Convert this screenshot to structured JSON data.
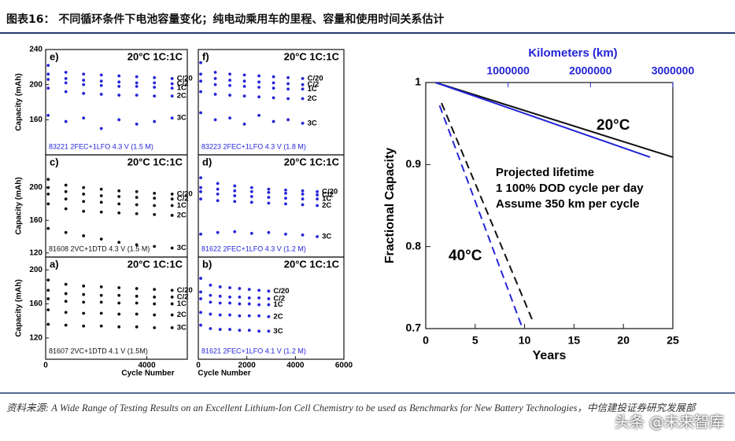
{
  "header": {
    "title": "图表16：  不同循环条件下电池容量变化；纯电动乘用车的里程、容量和使用时间关系估计"
  },
  "source": "资料来源: A Wide Range of Testing Results on an Excellent Lithium-Ion Cell Chemistry to be used as Benchmarks for New Battery Technologies，中信建投证券研究发展部",
  "watermark": "头条 @未来智库",
  "chart_data": [
    {
      "type": "scatter",
      "label": "e)",
      "title": "20°C 1C:1C",
      "note": "83221 2FEC+1LFO 4.3 V (1.5 M)",
      "y_label": "Capacity (mAh)",
      "color": "#2424d8",
      "x": [
        100,
        800,
        1500,
        2200,
        2900,
        3600,
        4300,
        5000
      ],
      "xlim": [
        0,
        5600
      ],
      "ylim": [
        120,
        240
      ],
      "yticks": [
        160,
        200,
        240
      ],
      "series": [
        {
          "name": "C/20",
          "values": [
            222,
            214,
            212,
            211,
            210,
            209,
            208,
            207
          ]
        },
        {
          "name": "C/2",
          "values": [
            212,
            207,
            205,
            204,
            203,
            202,
            202,
            201
          ]
        },
        {
          "name": "1C",
          "values": [
            206,
            202,
            200,
            199,
            198,
            198,
            197,
            196
          ]
        },
        {
          "name": "2C",
          "values": [
            196,
            192,
            190,
            189,
            188,
            188,
            187,
            187
          ]
        },
        {
          "name": "3C",
          "values": [
            165,
            158,
            162,
            150,
            160,
            155,
            158,
            162
          ]
        }
      ]
    },
    {
      "type": "scatter",
      "label": "f)",
      "title": "20°C 1C:1C",
      "note": "83223 2FEC+1LFO 4.3 V (1.8 M)",
      "color": "#2424d8",
      "x": [
        100,
        700,
        1300,
        1900,
        2500,
        3100,
        3700,
        4300
      ],
      "xlim": [
        0,
        6000
      ],
      "ylim": [
        120,
        240
      ],
      "series": [
        {
          "name": "C/20",
          "values": [
            225,
            214,
            212,
            211,
            210,
            209,
            208,
            207
          ]
        },
        {
          "name": "C/2",
          "values": [
            212,
            207,
            205,
            204,
            203,
            202,
            201,
            200
          ]
        },
        {
          "name": "1C",
          "values": [
            204,
            200,
            199,
            198,
            197,
            196,
            195,
            195
          ]
        },
        {
          "name": "2C",
          "values": [
            192,
            189,
            188,
            187,
            186,
            185,
            184,
            184
          ]
        },
        {
          "name": "3C",
          "values": [
            168,
            160,
            162,
            155,
            165,
            158,
            160,
            156
          ]
        }
      ]
    },
    {
      "type": "scatter",
      "label": "c)",
      "title": "20°C 1C:1C",
      "note": "81608 2VC+1DTD 4.3 V (1.5 M)",
      "y_label": "Capacity (mAh)",
      "color": "#111111",
      "x": [
        100,
        800,
        1500,
        2200,
        2900,
        3600,
        4300,
        5000
      ],
      "xlim": [
        0,
        5600
      ],
      "ylim": [
        115,
        240
      ],
      "yticks": [
        120,
        160,
        200
      ],
      "series": [
        {
          "name": "C/20",
          "values": [
            210,
            203,
            200,
            198,
            196,
            195,
            193,
            192
          ]
        },
        {
          "name": "C/2",
          "values": [
            200,
            195,
            192,
            190,
            189,
            188,
            187,
            186
          ]
        },
        {
          "name": "1C",
          "values": [
            192,
            186,
            183,
            182,
            180,
            179,
            178,
            178
          ]
        },
        {
          "name": "2C",
          "values": [
            180,
            174,
            171,
            170,
            169,
            168,
            167,
            166
          ]
        },
        {
          "name": "3C",
          "values": [
            150,
            145,
            141,
            137,
            133,
            130,
            128,
            126
          ]
        }
      ]
    },
    {
      "type": "scatter",
      "label": "d)",
      "title": "20°C 1C:1C",
      "note": "81622 2FEC+1LFO 4.3 V (1.2 M)",
      "color": "#2424d8",
      "x": [
        100,
        800,
        1500,
        2200,
        2900,
        3600,
        4300,
        4900
      ],
      "xlim": [
        0,
        6000
      ],
      "ylim": [
        115,
        240
      ],
      "series": [
        {
          "name": "C/20",
          "values": [
            212,
            205,
            202,
            200,
            198,
            197,
            196,
            195
          ]
        },
        {
          "name": "C/2",
          "values": [
            200,
            198,
            196,
            195,
            194,
            193,
            192,
            191
          ]
        },
        {
          "name": "1C",
          "values": [
            195,
            192,
            190,
            189,
            188,
            187,
            186,
            186
          ]
        },
        {
          "name": "2C",
          "values": [
            186,
            184,
            183,
            182,
            181,
            180,
            179,
            178
          ]
        },
        {
          "name": "3C",
          "values": [
            143,
            145,
            146,
            144,
            145,
            143,
            142,
            140
          ]
        }
      ]
    },
    {
      "type": "scatter",
      "label": "a)",
      "title": "20°C 1C:1C",
      "note": "81607 2VC+1DTD 4.1 V (1.5M)",
      "y_label": "Capacity (mAh)",
      "x_label": "Cycle Number",
      "color": "#111111",
      "x": [
        100,
        800,
        1500,
        2200,
        2900,
        3600,
        4300,
        5000
      ],
      "xlim": [
        0,
        5600
      ],
      "xticks": [
        0,
        4000
      ],
      "ylim": [
        95,
        215
      ],
      "yticks": [
        120,
        160,
        200
      ],
      "series": [
        {
          "name": "C/20",
          "values": [
            188,
            183,
            181,
            180,
            179,
            178,
            177,
            176
          ]
        },
        {
          "name": "C/2",
          "values": [
            176,
            172,
            171,
            170,
            170,
            169,
            168,
            168
          ]
        },
        {
          "name": "1C",
          "values": [
            166,
            163,
            162,
            162,
            161,
            161,
            160,
            160
          ]
        },
        {
          "name": "2C",
          "values": [
            153,
            150,
            149,
            149,
            148,
            148,
            147,
            147
          ]
        },
        {
          "name": "3C",
          "values": [
            136,
            135,
            134,
            134,
            133,
            133,
            132,
            132
          ]
        }
      ]
    },
    {
      "type": "scatter",
      "label": "b)",
      "title": "20°C 1C:1C",
      "note": "81621 2FEC+1LFO 4.1 V (1.2 M)",
      "x_label": "Cycle Number",
      "color": "#2424d8",
      "x": [
        100,
        500,
        900,
        1300,
        1700,
        2100,
        2500,
        2900
      ],
      "xlim": [
        0,
        6000
      ],
      "xticks": [
        0,
        2000,
        4000,
        6000
      ],
      "ylim": [
        95,
        215
      ],
      "series": [
        {
          "name": "C/20",
          "values": [
            190,
            182,
            180,
            179,
            178,
            177,
            176,
            175
          ]
        },
        {
          "name": "C/2",
          "values": [
            174,
            170,
            169,
            168,
            168,
            167,
            167,
            166
          ]
        },
        {
          "name": "1C",
          "values": [
            166,
            162,
            161,
            161,
            160,
            160,
            159,
            159
          ]
        },
        {
          "name": "2C",
          "values": [
            150,
            148,
            147,
            147,
            146,
            146,
            146,
            145
          ]
        },
        {
          "name": "3C",
          "values": [
            135,
            131,
            130,
            130,
            129,
            129,
            128,
            128
          ]
        }
      ]
    },
    {
      "type": "line",
      "x_label": "Years",
      "y_label": "Fractional Capacity",
      "x2_label": "Kilometers (km)",
      "xlim": [
        0,
        25
      ],
      "xticks": [
        0,
        5,
        10,
        15,
        20,
        25
      ],
      "x2lim": [
        0,
        3000000
      ],
      "x2ticks": [
        1000000,
        2000000,
        3000000
      ],
      "ylim": [
        0.7,
        1.0
      ],
      "yticks": [
        0.7,
        0.8,
        0.9,
        1
      ],
      "series": [
        {
          "color": "#111111",
          "dash": false,
          "x": [
            1,
            25
          ],
          "values": [
            1.0,
            0.909
          ]
        },
        {
          "color": "#2424d8",
          "dash": false,
          "x": [
            1,
            22.7
          ],
          "values": [
            1.0,
            0.909
          ]
        },
        {
          "color": "#2424d8",
          "dash": true,
          "x": [
            1.4,
            9.8
          ],
          "values": [
            0.972,
            0.7
          ]
        },
        {
          "color": "#111111",
          "dash": true,
          "x": [
            1.6,
            10.8
          ],
          "values": [
            0.975,
            0.71
          ]
        }
      ],
      "annotations": [
        "20°C",
        "40°C",
        "Projected lifetime",
        "1 100% DOD cycle per day",
        "Assume 350 km per cycle"
      ]
    }
  ]
}
